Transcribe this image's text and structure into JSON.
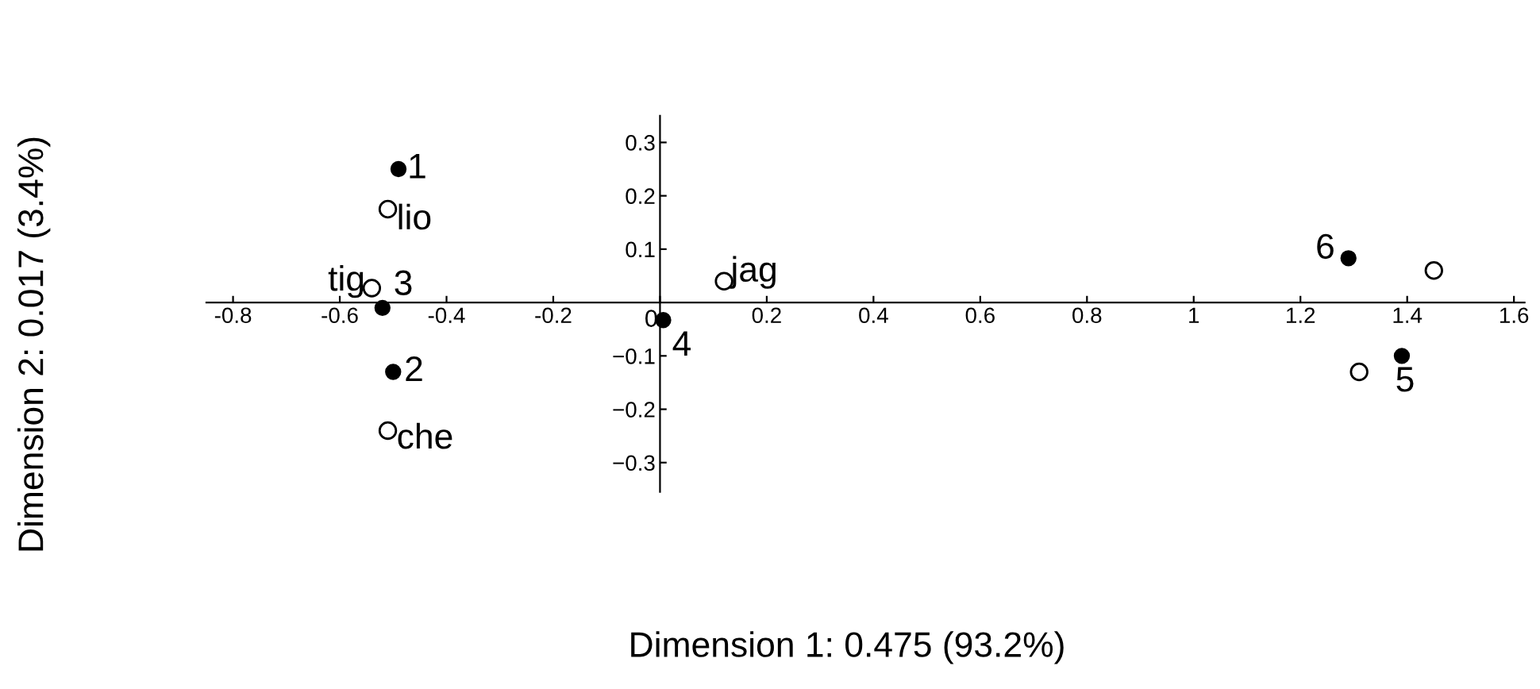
{
  "chart_data": {
    "type": "scatter",
    "xlabel": "Dimension 1: 0.475 (93.2%)",
    "ylabel": "Dimension 2: 0.017 (3.4%)",
    "series": [
      {
        "color": "#000000",
        "marker": "circle",
        "x": [
          -0.49,
          -0.5,
          -0.52,
          0.006,
          1.39,
          1.29
        ],
        "values": [
          0.25,
          -0.13,
          -0.01,
          -0.033,
          -0.1,
          0.083
        ]
      },
      {
        "color": "#000000",
        "marker": "circle",
        "x": [
          -0.51,
          -0.54,
          -0.51,
          0.12,
          1.45,
          1.31
        ],
        "values": [
          0.175,
          0.027,
          -0.24,
          0.04,
          0.06,
          -0.13
        ]
      }
    ],
    "annotations": [
      {
        "text": "1",
        "x": -0.49,
        "y": 0.25
      },
      {
        "text": "2",
        "x": -0.5,
        "y": -0.13
      },
      {
        "text": "3",
        "x": -0.52,
        "y": -0.01
      },
      {
        "text": "4",
        "x": 0.006,
        "y": -0.033
      },
      {
        "text": "5",
        "x": 1.39,
        "y": -0.1
      },
      {
        "text": "6",
        "x": 1.29,
        "y": 0.083
      },
      {
        "text": "lio",
        "x": -0.51,
        "y": 0.175
      },
      {
        "text": "tig",
        "x": -0.54,
        "y": 0.027
      },
      {
        "text": "che",
        "x": -0.51,
        "y": -0.24
      },
      {
        "text": "jag",
        "x": 0.12,
        "y": 0.04
      }
    ],
    "xlim": [
      -0.85,
      1.62
    ],
    "ylim": [
      -0.355,
      0.35
    ],
    "xticks": [
      {
        "value": -0.8,
        "label": "-0.8"
      },
      {
        "value": -0.6,
        "label": "-0.6"
      },
      {
        "value": -0.4,
        "label": "-0.4"
      },
      {
        "value": -0.2,
        "label": "-0.2"
      },
      0,
      0.2,
      0.4,
      0.6,
      0.8,
      1,
      1.2,
      1.4,
      1.6
    ],
    "yticks": [
      {
        "value": -0.3,
        "label": "−0.3"
      },
      {
        "value": -0.2,
        "label": "−0.2"
      },
      {
        "value": -0.1,
        "label": "−0.1"
      },
      0.1,
      0.2,
      0.3
    ],
    "grid": false,
    "legend": false
  }
}
